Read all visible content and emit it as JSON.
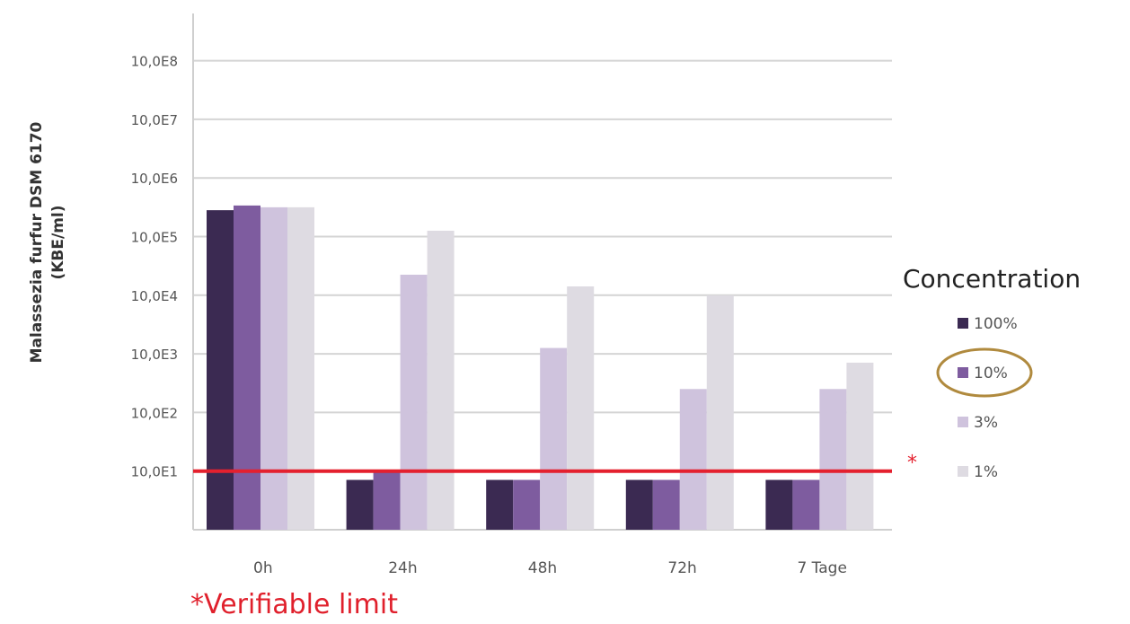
{
  "chart_data": {
    "type": "bar",
    "scale": "log10",
    "ylabel_line1": "Malassezia furfur DSM 6170",
    "ylabel_line2": "(KBE/ml)",
    "categories": [
      "0h",
      "24h",
      "48h",
      "72h",
      "7 Tage"
    ],
    "y_ticks": [
      {
        "label": "10,0E1",
        "exp": 1
      },
      {
        "label": "10,0E2",
        "exp": 2
      },
      {
        "label": "10,0E3",
        "exp": 3
      },
      {
        "label": "10,0E4",
        "exp": 4
      },
      {
        "label": "10,0E5",
        "exp": 5
      },
      {
        "label": "10,0E6",
        "exp": 6
      },
      {
        "label": "10,0E7",
        "exp": 7
      },
      {
        "label": "10,0E8",
        "exp": 8
      }
    ],
    "ylim_exp": [
      0,
      8.5
    ],
    "grid": true,
    "legend_title": "Concentration",
    "legend_position": "right",
    "series": [
      {
        "name": "100%",
        "color": "#3b2a52",
        "log_values": [
          5.45,
          0.85,
          0.85,
          0.85,
          0.85
        ]
      },
      {
        "name": "10%",
        "color": "#7e5c9f",
        "log_values": [
          5.53,
          1.0,
          0.85,
          0.85,
          0.85
        ]
      },
      {
        "name": "3%",
        "color": "#cfc3dd",
        "log_values": [
          5.5,
          4.35,
          3.1,
          2.4,
          2.4
        ]
      },
      {
        "name": "1%",
        "color": "#dedbe2",
        "log_values": [
          5.5,
          5.1,
          4.15,
          4.0,
          2.85
        ]
      }
    ],
    "limit_line": {
      "exp": 1.0,
      "color": "#e4202e",
      "marker": "*"
    },
    "highlight": {
      "series_index": 1,
      "color": "#b08a3e"
    },
    "footnote": "*Verifiable limit"
  }
}
